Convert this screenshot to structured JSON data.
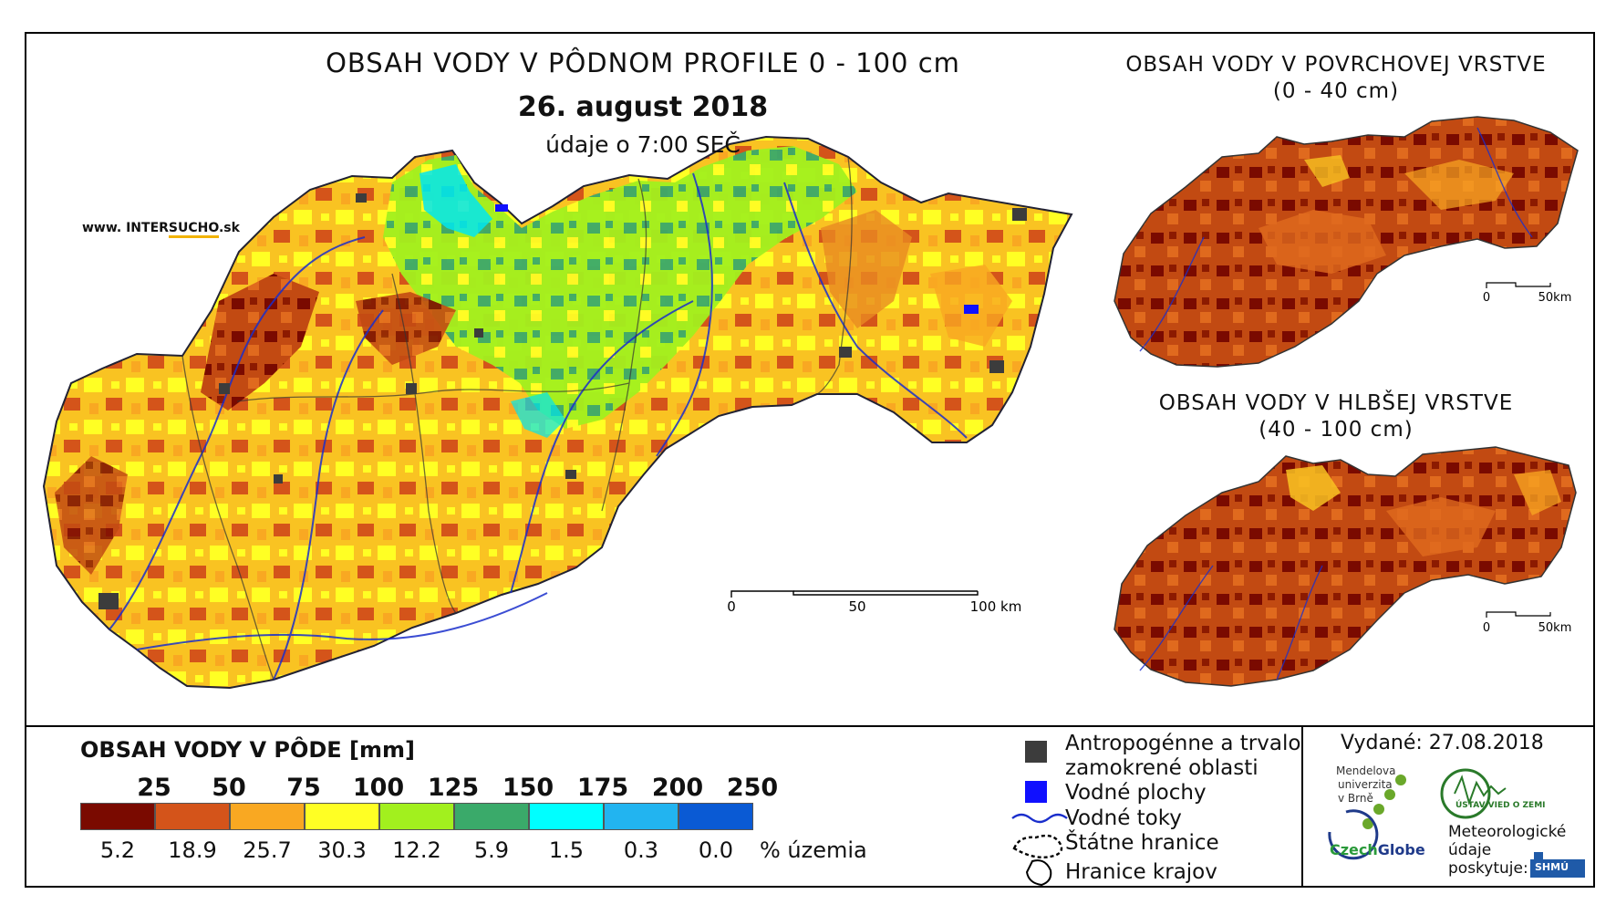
{
  "header": {
    "title": "OBSAH VODY V PÔDNOM PROFILE 0 - 100 cm",
    "date": "26. august 2018",
    "time": "údaje o 7:00 SEČ",
    "site_prefix": "www. INTER",
    "site_hl": "SUCHO",
    "site_suffix": ".sk"
  },
  "insets": [
    {
      "title_line1": "OBSAH VODY V POVRCHOVEJ VRSTVE",
      "title_line2": "(0 - 40 cm)",
      "scale": [
        "0",
        "50km"
      ]
    },
    {
      "title_line1": "OBSAH VODY V HLBŠEJ VRSTVE",
      "title_line2": "(40 - 100 cm)",
      "scale": [
        "0",
        "50km"
      ]
    }
  ],
  "main_scale": [
    "0",
    "50",
    "100 km"
  ],
  "legend": {
    "title": "OBSAH VODY V PÔDE [mm]",
    "classes": [
      {
        "label": "25",
        "pct": "5.2",
        "color": "#7a0a00"
      },
      {
        "label": "50",
        "pct": "18.9",
        "color": "#d4541a"
      },
      {
        "label": "75",
        "pct": "25.7",
        "color": "#f9a822"
      },
      {
        "label": "100",
        "pct": "30.3",
        "color": "#ffff24"
      },
      {
        "label": "125",
        "pct": "12.2",
        "color": "#a2f01e"
      },
      {
        "label": "150",
        "pct": "5.9",
        "color": "#3aaa6a"
      },
      {
        "label": "175",
        "pct": "1.5",
        "color": "#00ffff"
      },
      {
        "label": "200",
        "pct": "0.3",
        "color": "#22b4f0"
      },
      {
        "label": "250",
        "pct": "0.0",
        "color": "#0a5ad4"
      }
    ],
    "pct_unit": "% územia"
  },
  "symbols": {
    "urban_line1": "Antropogénne a trvalo",
    "urban_line2": "zamokrené oblasti",
    "water_bodies": "Vodné plochy",
    "rivers": "Vodné toky",
    "state_border": "Štátne hranice",
    "region_border": "Hranice krajov"
  },
  "footer": {
    "issued": "Vydané: 27.08.2018",
    "mendel_1": "Mendelova",
    "mendel_2": "univerzita",
    "mendel_3": "v Brně",
    "czechglobe_a": "Czech",
    "czechglobe_b": "Globe",
    "uvgz": "ÚSTAV VIED O ZEMI",
    "meteo_1": "Meteorologické",
    "meteo_2": "údaje",
    "meteo_3": "poskytuje:",
    "shmu": "SHMÚ"
  }
}
